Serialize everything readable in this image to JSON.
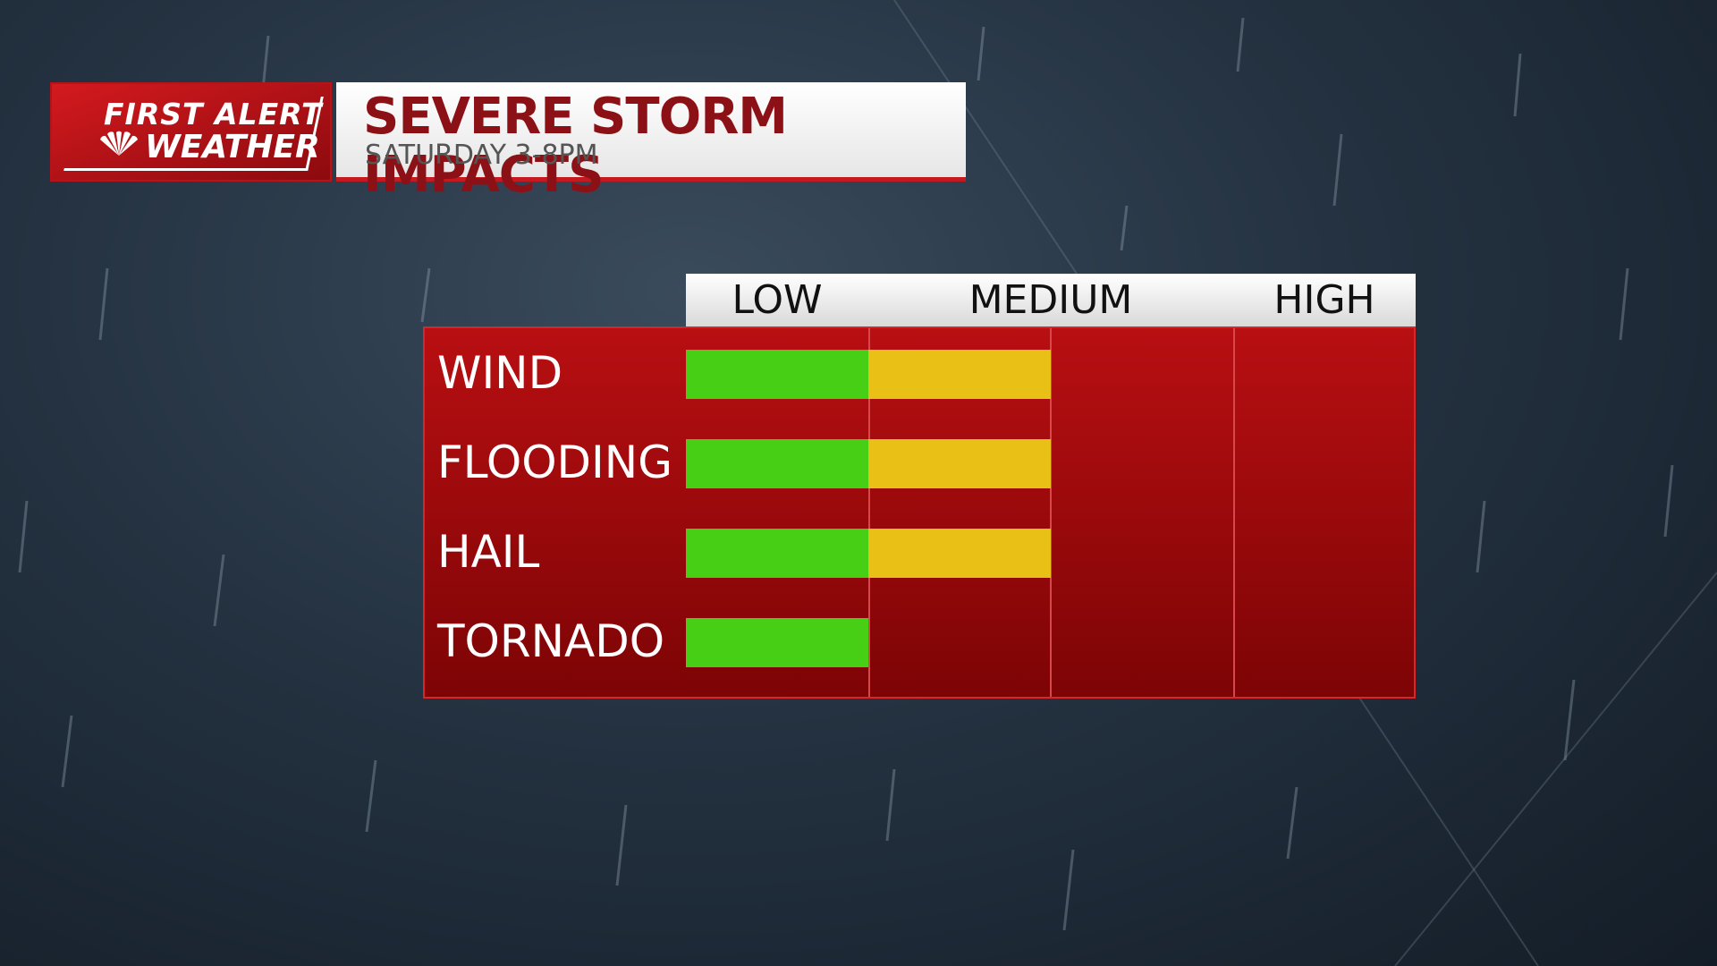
{
  "branding": {
    "line1": "FIRST ALERT",
    "line2": "WEATHER"
  },
  "header": {
    "title": "SEVERE STORM IMPACTS",
    "subtitle": "SATURDAY 3-8PM"
  },
  "columns": [
    "LOW",
    "MEDIUM",
    "HIGH"
  ],
  "rows": [
    {
      "label": "WIND",
      "level": 2
    },
    {
      "label": "FLOODING",
      "level": 2
    },
    {
      "label": "HAIL",
      "level": 2
    },
    {
      "label": "TORNADO",
      "level": 1
    }
  ],
  "colors": {
    "low": "#47cf16",
    "medium": "#e8c016"
  }
}
